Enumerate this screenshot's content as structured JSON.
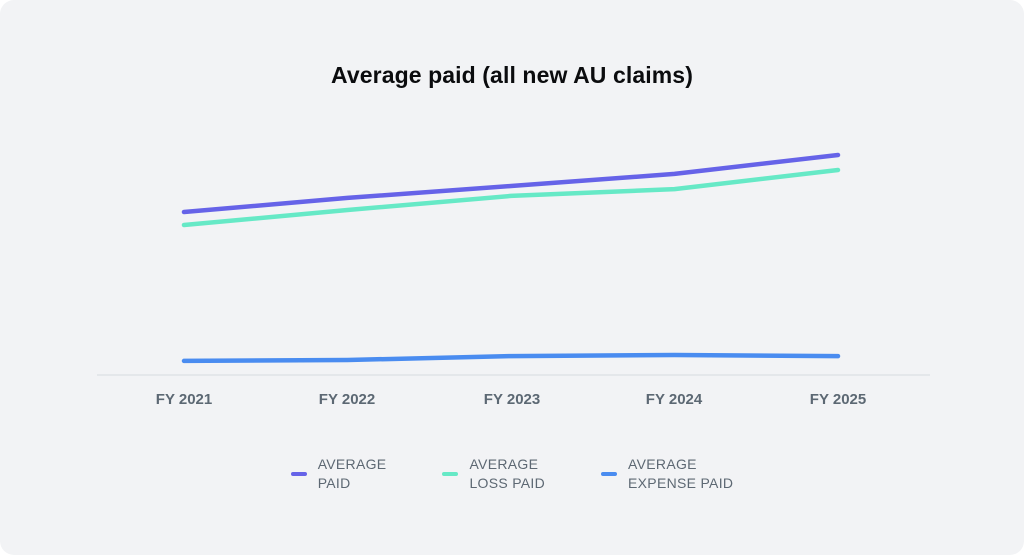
{
  "page": {
    "background_color": "#F2F3F5"
  },
  "chart_data": {
    "type": "line",
    "title": "Average paid (all new AU claims)",
    "categories": [
      "FY 2021",
      "FY 2022",
      "FY 2023",
      "FY 2024",
      "FY 2025"
    ],
    "series": [
      {
        "name": "AVERAGE PAID",
        "legend_lines": [
          "AVERAGE",
          "PAID"
        ],
        "color": "#6663E8",
        "values": [
          74.1,
          80.5,
          85.9,
          91.4,
          100
        ]
      },
      {
        "name": "AVERAGE LOSS PAID",
        "legend_lines": [
          "AVERAGE",
          "LOSS PAID"
        ],
        "color": "#66E9C6",
        "values": [
          68.2,
          75.0,
          81.4,
          84.5,
          93.2
        ]
      },
      {
        "name": "AVERAGE EXPENSE PAID",
        "legend_lines": [
          "AVERAGE",
          "EXPENSE PAID"
        ],
        "color": "#4A8CF0",
        "values": [
          6.4,
          6.8,
          8.6,
          9.1,
          8.6
        ]
      }
    ],
    "value_scale": "relative units; no y-axis shown, FY 2025 AVERAGE PAID normalized to 100",
    "ylim": [
      0,
      105
    ],
    "xlabel": "",
    "ylabel": "",
    "y_axis_visible": false,
    "gridlines": false,
    "baseline_color": "#E4E7EA",
    "legend_position": "bottom"
  }
}
